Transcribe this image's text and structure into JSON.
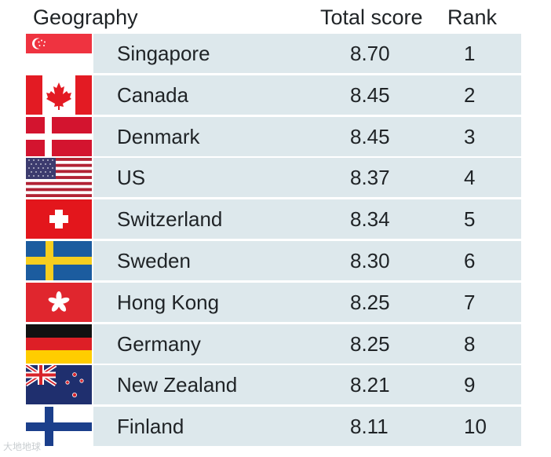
{
  "header": {
    "geography": "Geography",
    "total_score": "Total score",
    "rank": "Rank"
  },
  "chart_data": {
    "type": "table",
    "columns": [
      "Geography",
      "Total score",
      "Rank"
    ],
    "rows": [
      {
        "country": "Singapore",
        "score": "8.70",
        "rank": "1",
        "flag": "singapore-flag-icon"
      },
      {
        "country": "Canada",
        "score": "8.45",
        "rank": "2",
        "flag": "canada-flag-icon"
      },
      {
        "country": "Denmark",
        "score": "8.45",
        "rank": "3",
        "flag": "denmark-flag-icon"
      },
      {
        "country": "US",
        "score": "8.37",
        "rank": "4",
        "flag": "us-flag-icon"
      },
      {
        "country": "Switzerland",
        "score": "8.34",
        "rank": "5",
        "flag": "switzerland-flag-icon"
      },
      {
        "country": "Sweden",
        "score": "8.30",
        "rank": "6",
        "flag": "sweden-flag-icon"
      },
      {
        "country": "Hong Kong",
        "score": "8.25",
        "rank": "7",
        "flag": "hong-kong-flag-icon"
      },
      {
        "country": "Germany",
        "score": "8.25",
        "rank": "8",
        "flag": "germany-flag-icon"
      },
      {
        "country": "New Zealand",
        "score": "8.21",
        "rank": "9",
        "flag": "new-zealand-flag-icon"
      },
      {
        "country": "Finland",
        "score": "8.11",
        "rank": "10",
        "flag": "finland-flag-icon"
      }
    ]
  },
  "colors": {
    "row_background": "#dde8ec",
    "text": "#1f2326"
  },
  "watermark": "大地地球"
}
